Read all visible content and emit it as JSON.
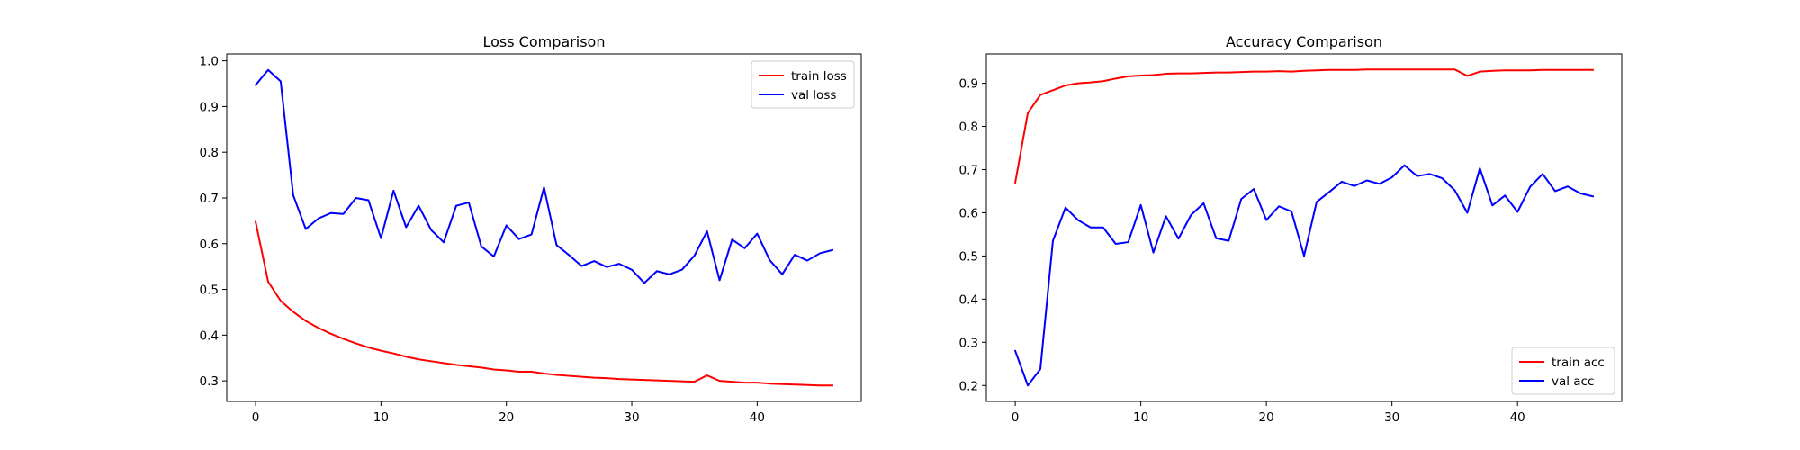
{
  "chart_data": [
    {
      "type": "line",
      "title": "Loss Comparison",
      "xlabel": "",
      "ylabel": "",
      "xlim": [
        -2.3,
        48.3
      ],
      "ylim": [
        0.255,
        1.015
      ],
      "xticks": [
        0,
        10,
        20,
        30,
        40
      ],
      "yticks": [
        0.3,
        0.4,
        0.5,
        0.6,
        0.7,
        0.8,
        0.9,
        1.0
      ],
      "ytick_format": 1,
      "grid": false,
      "legend": "top-right",
      "series": [
        {
          "name": "train loss",
          "color": "#ff0000",
          "x": [
            0,
            1,
            2,
            3,
            4,
            5,
            6,
            7,
            8,
            9,
            10,
            11,
            12,
            13,
            14,
            15,
            16,
            17,
            18,
            19,
            20,
            21,
            22,
            23,
            24,
            25,
            26,
            27,
            28,
            29,
            30,
            31,
            32,
            33,
            34,
            35,
            36,
            37,
            38,
            39,
            40,
            41,
            42,
            43,
            44,
            45,
            46
          ],
          "values": [
            0.648,
            0.517,
            0.475,
            0.451,
            0.431,
            0.416,
            0.403,
            0.392,
            0.382,
            0.373,
            0.366,
            0.36,
            0.353,
            0.347,
            0.343,
            0.339,
            0.335,
            0.332,
            0.329,
            0.325,
            0.323,
            0.32,
            0.32,
            0.316,
            0.313,
            0.311,
            0.309,
            0.307,
            0.306,
            0.304,
            0.303,
            0.302,
            0.301,
            0.3,
            0.299,
            0.298,
            0.312,
            0.3,
            0.298,
            0.296,
            0.296,
            0.294,
            0.293,
            0.292,
            0.291,
            0.29,
            0.29
          ]
        },
        {
          "name": "val loss",
          "color": "#0000ff",
          "x": [
            0,
            1,
            2,
            3,
            4,
            5,
            6,
            7,
            8,
            9,
            10,
            11,
            12,
            13,
            14,
            15,
            16,
            17,
            18,
            19,
            20,
            21,
            22,
            23,
            24,
            25,
            26,
            27,
            28,
            29,
            30,
            31,
            32,
            33,
            34,
            35,
            36,
            37,
            38,
            39,
            40,
            41,
            42,
            43,
            44,
            45,
            46
          ],
          "values": [
            0.947,
            0.98,
            0.955,
            0.706,
            0.632,
            0.655,
            0.667,
            0.665,
            0.7,
            0.695,
            0.612,
            0.716,
            0.636,
            0.683,
            0.63,
            0.603,
            0.683,
            0.69,
            0.594,
            0.572,
            0.64,
            0.61,
            0.62,
            0.723,
            0.597,
            0.575,
            0.551,
            0.562,
            0.549,
            0.556,
            0.543,
            0.514,
            0.54,
            0.533,
            0.543,
            0.574,
            0.627,
            0.52,
            0.609,
            0.59,
            0.622,
            0.564,
            0.533,
            0.576,
            0.563,
            0.579,
            0.586
          ]
        }
      ]
    },
    {
      "type": "line",
      "title": "Accuracy Comparison",
      "xlabel": "",
      "ylabel": "",
      "xlim": [
        -2.3,
        48.3
      ],
      "ylim": [
        0.163,
        0.968
      ],
      "xticks": [
        0,
        10,
        20,
        30,
        40
      ],
      "yticks": [
        0.2,
        0.3,
        0.4,
        0.5,
        0.6,
        0.7,
        0.8,
        0.9
      ],
      "ytick_format": 1,
      "grid": false,
      "legend": "bottom-right",
      "series": [
        {
          "name": "train acc",
          "color": "#ff0000",
          "x": [
            0,
            1,
            2,
            3,
            4,
            5,
            6,
            7,
            8,
            9,
            10,
            11,
            12,
            13,
            14,
            15,
            16,
            17,
            18,
            19,
            20,
            21,
            22,
            23,
            24,
            25,
            26,
            27,
            28,
            29,
            30,
            31,
            32,
            33,
            34,
            35,
            36,
            37,
            38,
            39,
            40,
            41,
            42,
            43,
            44,
            45,
            46
          ],
          "values": [
            0.67,
            0.831,
            0.873,
            0.884,
            0.895,
            0.9,
            0.902,
            0.905,
            0.911,
            0.916,
            0.918,
            0.919,
            0.922,
            0.923,
            0.923,
            0.924,
            0.925,
            0.925,
            0.926,
            0.927,
            0.927,
            0.928,
            0.927,
            0.929,
            0.93,
            0.931,
            0.931,
            0.931,
            0.932,
            0.932,
            0.932,
            0.932,
            0.932,
            0.932,
            0.932,
            0.932,
            0.917,
            0.927,
            0.929,
            0.93,
            0.93,
            0.93,
            0.931,
            0.931,
            0.931,
            0.931,
            0.931
          ]
        },
        {
          "name": "val acc",
          "color": "#0000ff",
          "x": [
            0,
            1,
            2,
            3,
            4,
            5,
            6,
            7,
            8,
            9,
            10,
            11,
            12,
            13,
            14,
            15,
            16,
            17,
            18,
            19,
            20,
            21,
            22,
            23,
            24,
            25,
            26,
            27,
            28,
            29,
            30,
            31,
            32,
            33,
            34,
            35,
            36,
            37,
            38,
            39,
            40,
            41,
            42,
            43,
            44,
            45,
            46
          ],
          "values": [
            0.28,
            0.2,
            0.238,
            0.535,
            0.612,
            0.583,
            0.566,
            0.566,
            0.528,
            0.532,
            0.618,
            0.508,
            0.592,
            0.54,
            0.595,
            0.622,
            0.541,
            0.535,
            0.632,
            0.655,
            0.583,
            0.615,
            0.603,
            0.5,
            0.625,
            0.648,
            0.672,
            0.662,
            0.675,
            0.667,
            0.682,
            0.71,
            0.685,
            0.69,
            0.68,
            0.652,
            0.6,
            0.703,
            0.617,
            0.64,
            0.602,
            0.66,
            0.69,
            0.65,
            0.661,
            0.645,
            0.638
          ]
        }
      ]
    }
  ]
}
